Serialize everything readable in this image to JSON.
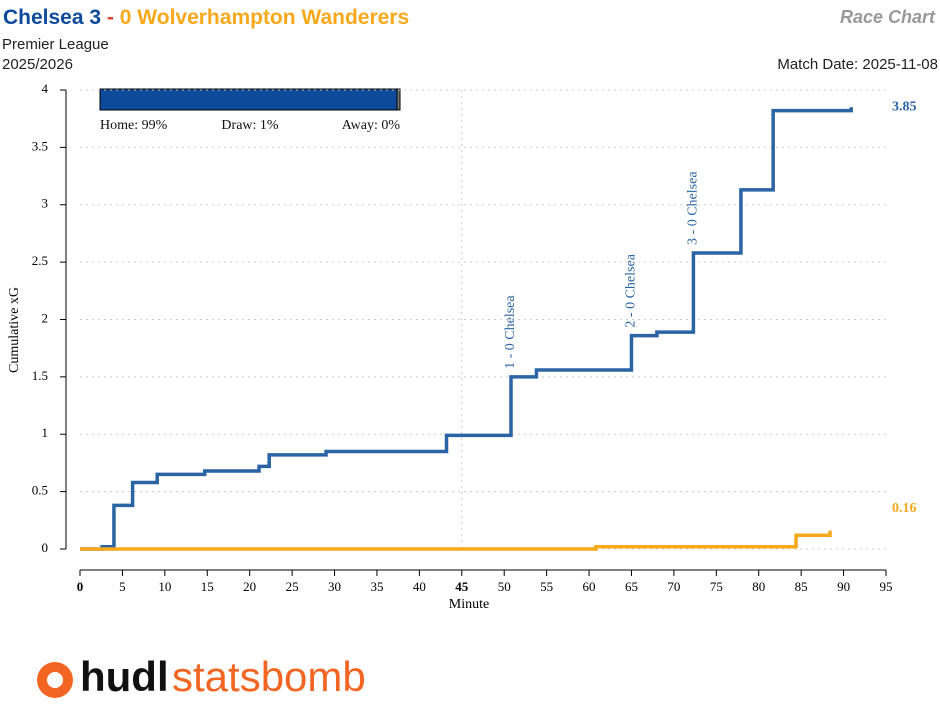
{
  "header": {
    "home_team": "Chelsea",
    "home_score": 3,
    "separator": "-",
    "away_score": 0,
    "away_team": "Wolverhampton Wanderers",
    "chart_name": "Race Chart",
    "competition": "Premier League",
    "season": "2025/2026",
    "match_date": "Match Date: 2025-11-08"
  },
  "win_probability": {
    "values": [
      99,
      1,
      0
    ],
    "value_labels": [
      "Home: 99%",
      "Draw: 1%",
      "Away: 0%"
    ],
    "colors": [
      "#0d4a9c",
      "#777777",
      "#f7a81b"
    ]
  },
  "chart_data": {
    "type": "line",
    "step": "after",
    "x_label": "Minute",
    "y_label": "Cumulative xG",
    "xlim": [
      0,
      95
    ],
    "xticks": [
      0,
      5,
      10,
      15,
      20,
      25,
      30,
      35,
      40,
      45,
      50,
      55,
      60,
      65,
      70,
      75,
      80,
      85,
      90,
      95
    ],
    "ylim": [
      0,
      4
    ],
    "yticks": [
      0,
      0.5,
      1,
      1.5,
      2,
      2.5,
      3,
      3.5,
      4
    ],
    "grid": true,
    "series": [
      {
        "name": "Chelsea",
        "color": "#2a64a5",
        "x": [
          0,
          2.6,
          4,
          6.2,
          9.1,
          14.7,
          21.1,
          22.3,
          29,
          43.2,
          50.8,
          53.8,
          65,
          68,
          72.3,
          77.9,
          81.7,
          90.9
        ],
        "values": [
          0,
          0.02,
          0.38,
          0.58,
          0.65,
          0.68,
          0.72,
          0.82,
          0.85,
          0.99,
          1.5,
          1.56,
          1.86,
          1.89,
          2.58,
          3.13,
          3.82,
          3.85
        ]
      },
      {
        "name": "Wolverhampton Wanderers",
        "color": "#f7a81b",
        "x": [
          0,
          60.8,
          84.4,
          88.4
        ],
        "values": [
          0,
          0.02,
          0.12,
          0.16
        ]
      }
    ],
    "annotations": [
      {
        "text": "1 - 0 Chelsea",
        "x": 50.8
      },
      {
        "text": "2 - 0 Chelsea",
        "x": 65
      },
      {
        "text": "3 - 0 Chelsea",
        "x": 72.3
      }
    ]
  },
  "logo": {
    "part1": "hudl",
    "part2": "statsbomb"
  }
}
